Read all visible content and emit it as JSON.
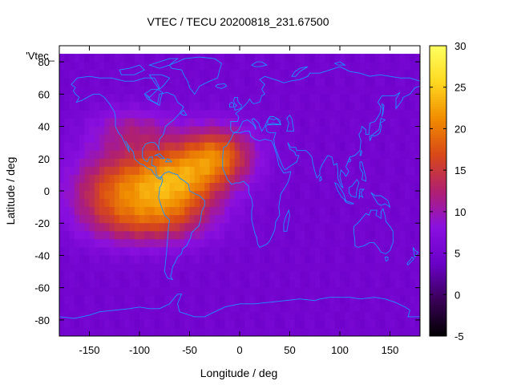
{
  "chart_data": {
    "type": "heatmap",
    "title": "VTEC / TECU 20200818_231.67500",
    "xlabel": "Longitude / deg",
    "ylabel": "Latitude / deg",
    "xlim": [
      -180,
      180
    ],
    "ylim": [
      -90,
      90
    ],
    "xticks": [
      -150,
      -100,
      -50,
      0,
      50,
      100,
      150
    ],
    "yticks": [
      -80,
      -60,
      -40,
      -20,
      0,
      20,
      40,
      60,
      80
    ],
    "legend_key": "'Vtec_",
    "colorbar": {
      "range": [
        -5,
        30
      ],
      "ticks": [
        -5,
        0,
        5,
        10,
        15,
        20,
        25,
        30
      ],
      "palette": [
        "#000000",
        "#3a0058",
        "#6a00c8",
        "#8a10e0",
        "#b02070",
        "#d84818",
        "#f08c00",
        "#ffd820",
        "#ffff60"
      ]
    },
    "background_vtec": 5,
    "vtec_peaks": [
      {
        "lon": -65,
        "lat": 5,
        "lon_spread": 45,
        "lat_spread": 24,
        "vtec": 16
      },
      {
        "lon": -125,
        "lat": 0,
        "lon_spread": 45,
        "lat_spread": 24,
        "vtec": 11
      },
      {
        "lon": -20,
        "lat": 22,
        "lon_spread": 35,
        "lat_spread": 18,
        "vtec": 12
      },
      {
        "lon": -90,
        "lat": -20,
        "lon_spread": 55,
        "lat_spread": 15,
        "vtec": 6
      },
      {
        "lon": -110,
        "lat": 38,
        "lon_spread": 40,
        "lat_spread": 14,
        "vtec": 5
      }
    ],
    "overlay": "coastlines",
    "coastline_color": "#1e90ff"
  }
}
